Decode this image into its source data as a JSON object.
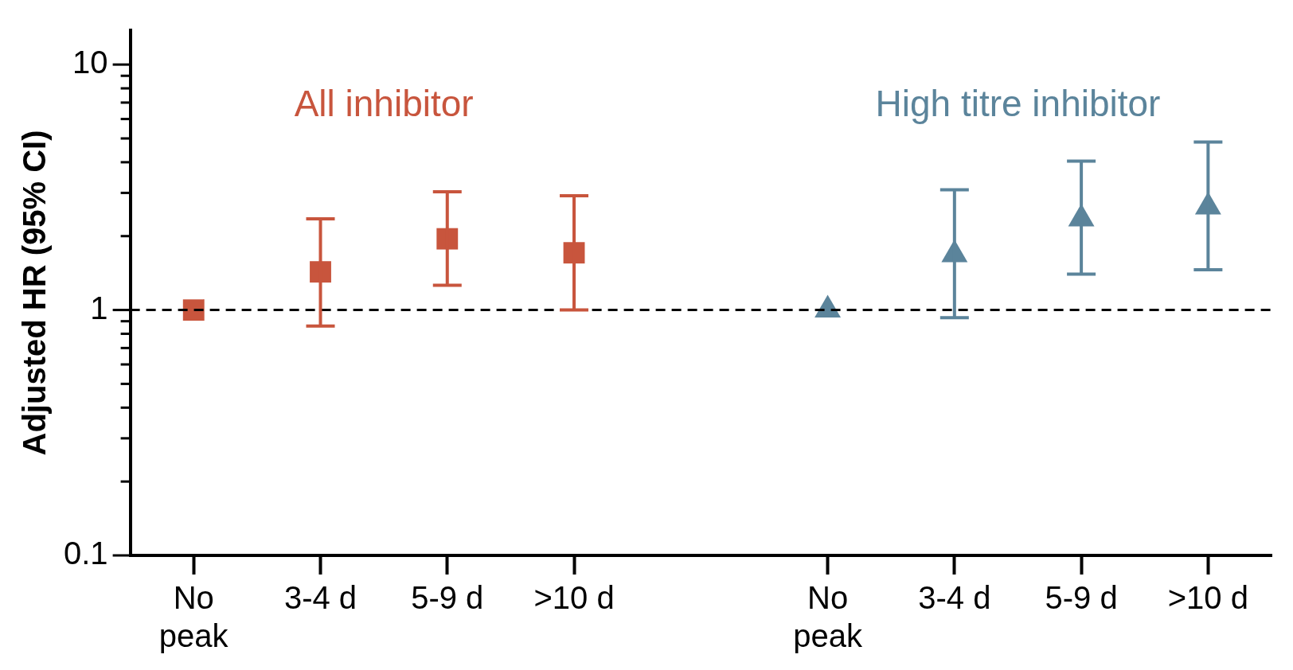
{
  "chart_data": {
    "type": "scatter",
    "ylabel": "Adjusted HR (95% CI)",
    "log": "y",
    "grid": false,
    "legend": false,
    "categories": [
      "No peak",
      "3-4 d",
      "5-9 d",
      ">10 d",
      null,
      "No peak",
      "3-4 d",
      "5-9 d",
      ">10 d"
    ],
    "ylim": [
      0.1,
      13.8
    ],
    "yticks": [
      0.1,
      {
        "value": 0.2,
        "label": null
      },
      {
        "value": 0.3,
        "label": null
      },
      {
        "value": 0.4,
        "label": null
      },
      {
        "value": 0.5,
        "label": null
      },
      {
        "value": 0.6,
        "label": null
      },
      {
        "value": 0.7,
        "label": null
      },
      {
        "value": 0.8,
        "label": null
      },
      {
        "value": 0.9,
        "label": null
      },
      1,
      {
        "value": 2,
        "label": null
      },
      {
        "value": 3,
        "label": null
      },
      {
        "value": 4,
        "label": null
      },
      {
        "value": 5,
        "label": null
      },
      {
        "value": 6,
        "label": null
      },
      {
        "value": 7,
        "label": null
      },
      {
        "value": 8,
        "label": null
      },
      {
        "value": 9,
        "label": null
      },
      10
    ],
    "ref_lines": [
      {
        "axis": "y",
        "value": 1,
        "color": "#000000",
        "line_style": "dashed"
      }
    ],
    "series": [
      {
        "name": "All inhibitor",
        "color": "#c8553d",
        "marker": "square",
        "values": [
          1,
          1.43,
          1.95,
          1.71,
          null,
          null,
          null,
          null,
          null
        ],
        "errors": [
          null,
          [
            0.86,
            2.35
          ],
          [
            1.26,
            3.03
          ],
          [
            1.0,
            2.92
          ],
          null,
          null,
          null,
          null,
          null
        ]
      },
      {
        "name": "High titre inhibitor",
        "color": "#5b849b",
        "marker": "triangle",
        "values": [
          null,
          null,
          null,
          null,
          null,
          1,
          1.68,
          2.35,
          2.63
        ],
        "errors": [
          null,
          null,
          null,
          null,
          null,
          null,
          [
            0.93,
            3.09
          ],
          [
            1.4,
            4.04
          ],
          [
            1.46,
            4.83
          ]
        ]
      }
    ]
  }
}
